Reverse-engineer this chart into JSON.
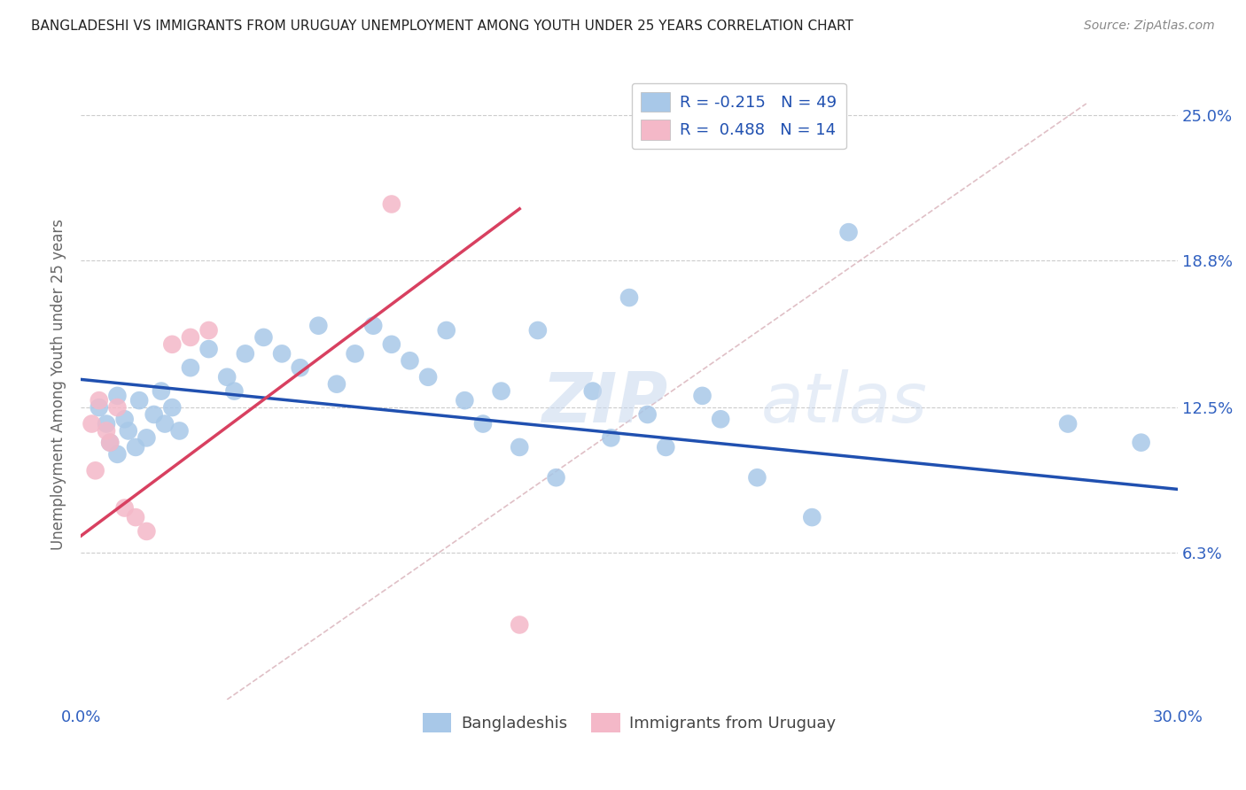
{
  "title": "BANGLADESHI VS IMMIGRANTS FROM URUGUAY UNEMPLOYMENT AMONG YOUTH UNDER 25 YEARS CORRELATION CHART",
  "source": "Source: ZipAtlas.com",
  "ylabel": "Unemployment Among Youth under 25 years",
  "xlim": [
    0.0,
    0.3
  ],
  "ylim": [
    0.0,
    0.27
  ],
  "yticks": [
    0.063,
    0.125,
    0.188,
    0.25
  ],
  "ytick_labels": [
    "6.3%",
    "12.5%",
    "18.8%",
    "25.0%"
  ],
  "xticks": [
    0.0,
    0.05,
    0.1,
    0.15,
    0.2,
    0.25,
    0.3
  ],
  "xtick_labels": [
    "0.0%",
    "",
    "",
    "",
    "",
    "",
    "30.0%"
  ],
  "legend_r1": "R = -0.215",
  "legend_n1": "N = 49",
  "legend_r2": "R =  0.488",
  "legend_n2": "N = 14",
  "watermark": "ZIPatlas",
  "blue_color": "#a8c8e8",
  "pink_color": "#f4b8c8",
  "line_blue": "#2050b0",
  "line_pink": "#d84060",
  "line_diag_color": "#d8b0b8",
  "bangladeshi_x": [
    0.005,
    0.007,
    0.008,
    0.01,
    0.01,
    0.012,
    0.013,
    0.015,
    0.016,
    0.018,
    0.02,
    0.022,
    0.023,
    0.025,
    0.027,
    0.03,
    0.035,
    0.04,
    0.042,
    0.045,
    0.05,
    0.055,
    0.06,
    0.065,
    0.07,
    0.075,
    0.08,
    0.085,
    0.09,
    0.095,
    0.1,
    0.105,
    0.11,
    0.115,
    0.12,
    0.125,
    0.13,
    0.14,
    0.145,
    0.15,
    0.155,
    0.16,
    0.17,
    0.175,
    0.185,
    0.2,
    0.21,
    0.27,
    0.29
  ],
  "bangladeshi_y": [
    0.125,
    0.118,
    0.11,
    0.13,
    0.105,
    0.12,
    0.115,
    0.108,
    0.128,
    0.112,
    0.122,
    0.132,
    0.118,
    0.125,
    0.115,
    0.142,
    0.15,
    0.138,
    0.132,
    0.148,
    0.155,
    0.148,
    0.142,
    0.16,
    0.135,
    0.148,
    0.16,
    0.152,
    0.145,
    0.138,
    0.158,
    0.128,
    0.118,
    0.132,
    0.108,
    0.158,
    0.095,
    0.132,
    0.112,
    0.172,
    0.122,
    0.108,
    0.13,
    0.12,
    0.095,
    0.078,
    0.2,
    0.118,
    0.11
  ],
  "uruguay_x": [
    0.003,
    0.004,
    0.005,
    0.007,
    0.008,
    0.01,
    0.012,
    0.015,
    0.018,
    0.025,
    0.03,
    0.035,
    0.085,
    0.12
  ],
  "uruguay_y": [
    0.118,
    0.098,
    0.128,
    0.115,
    0.11,
    0.125,
    0.082,
    0.078,
    0.072,
    0.152,
    0.155,
    0.158,
    0.212,
    0.032
  ]
}
